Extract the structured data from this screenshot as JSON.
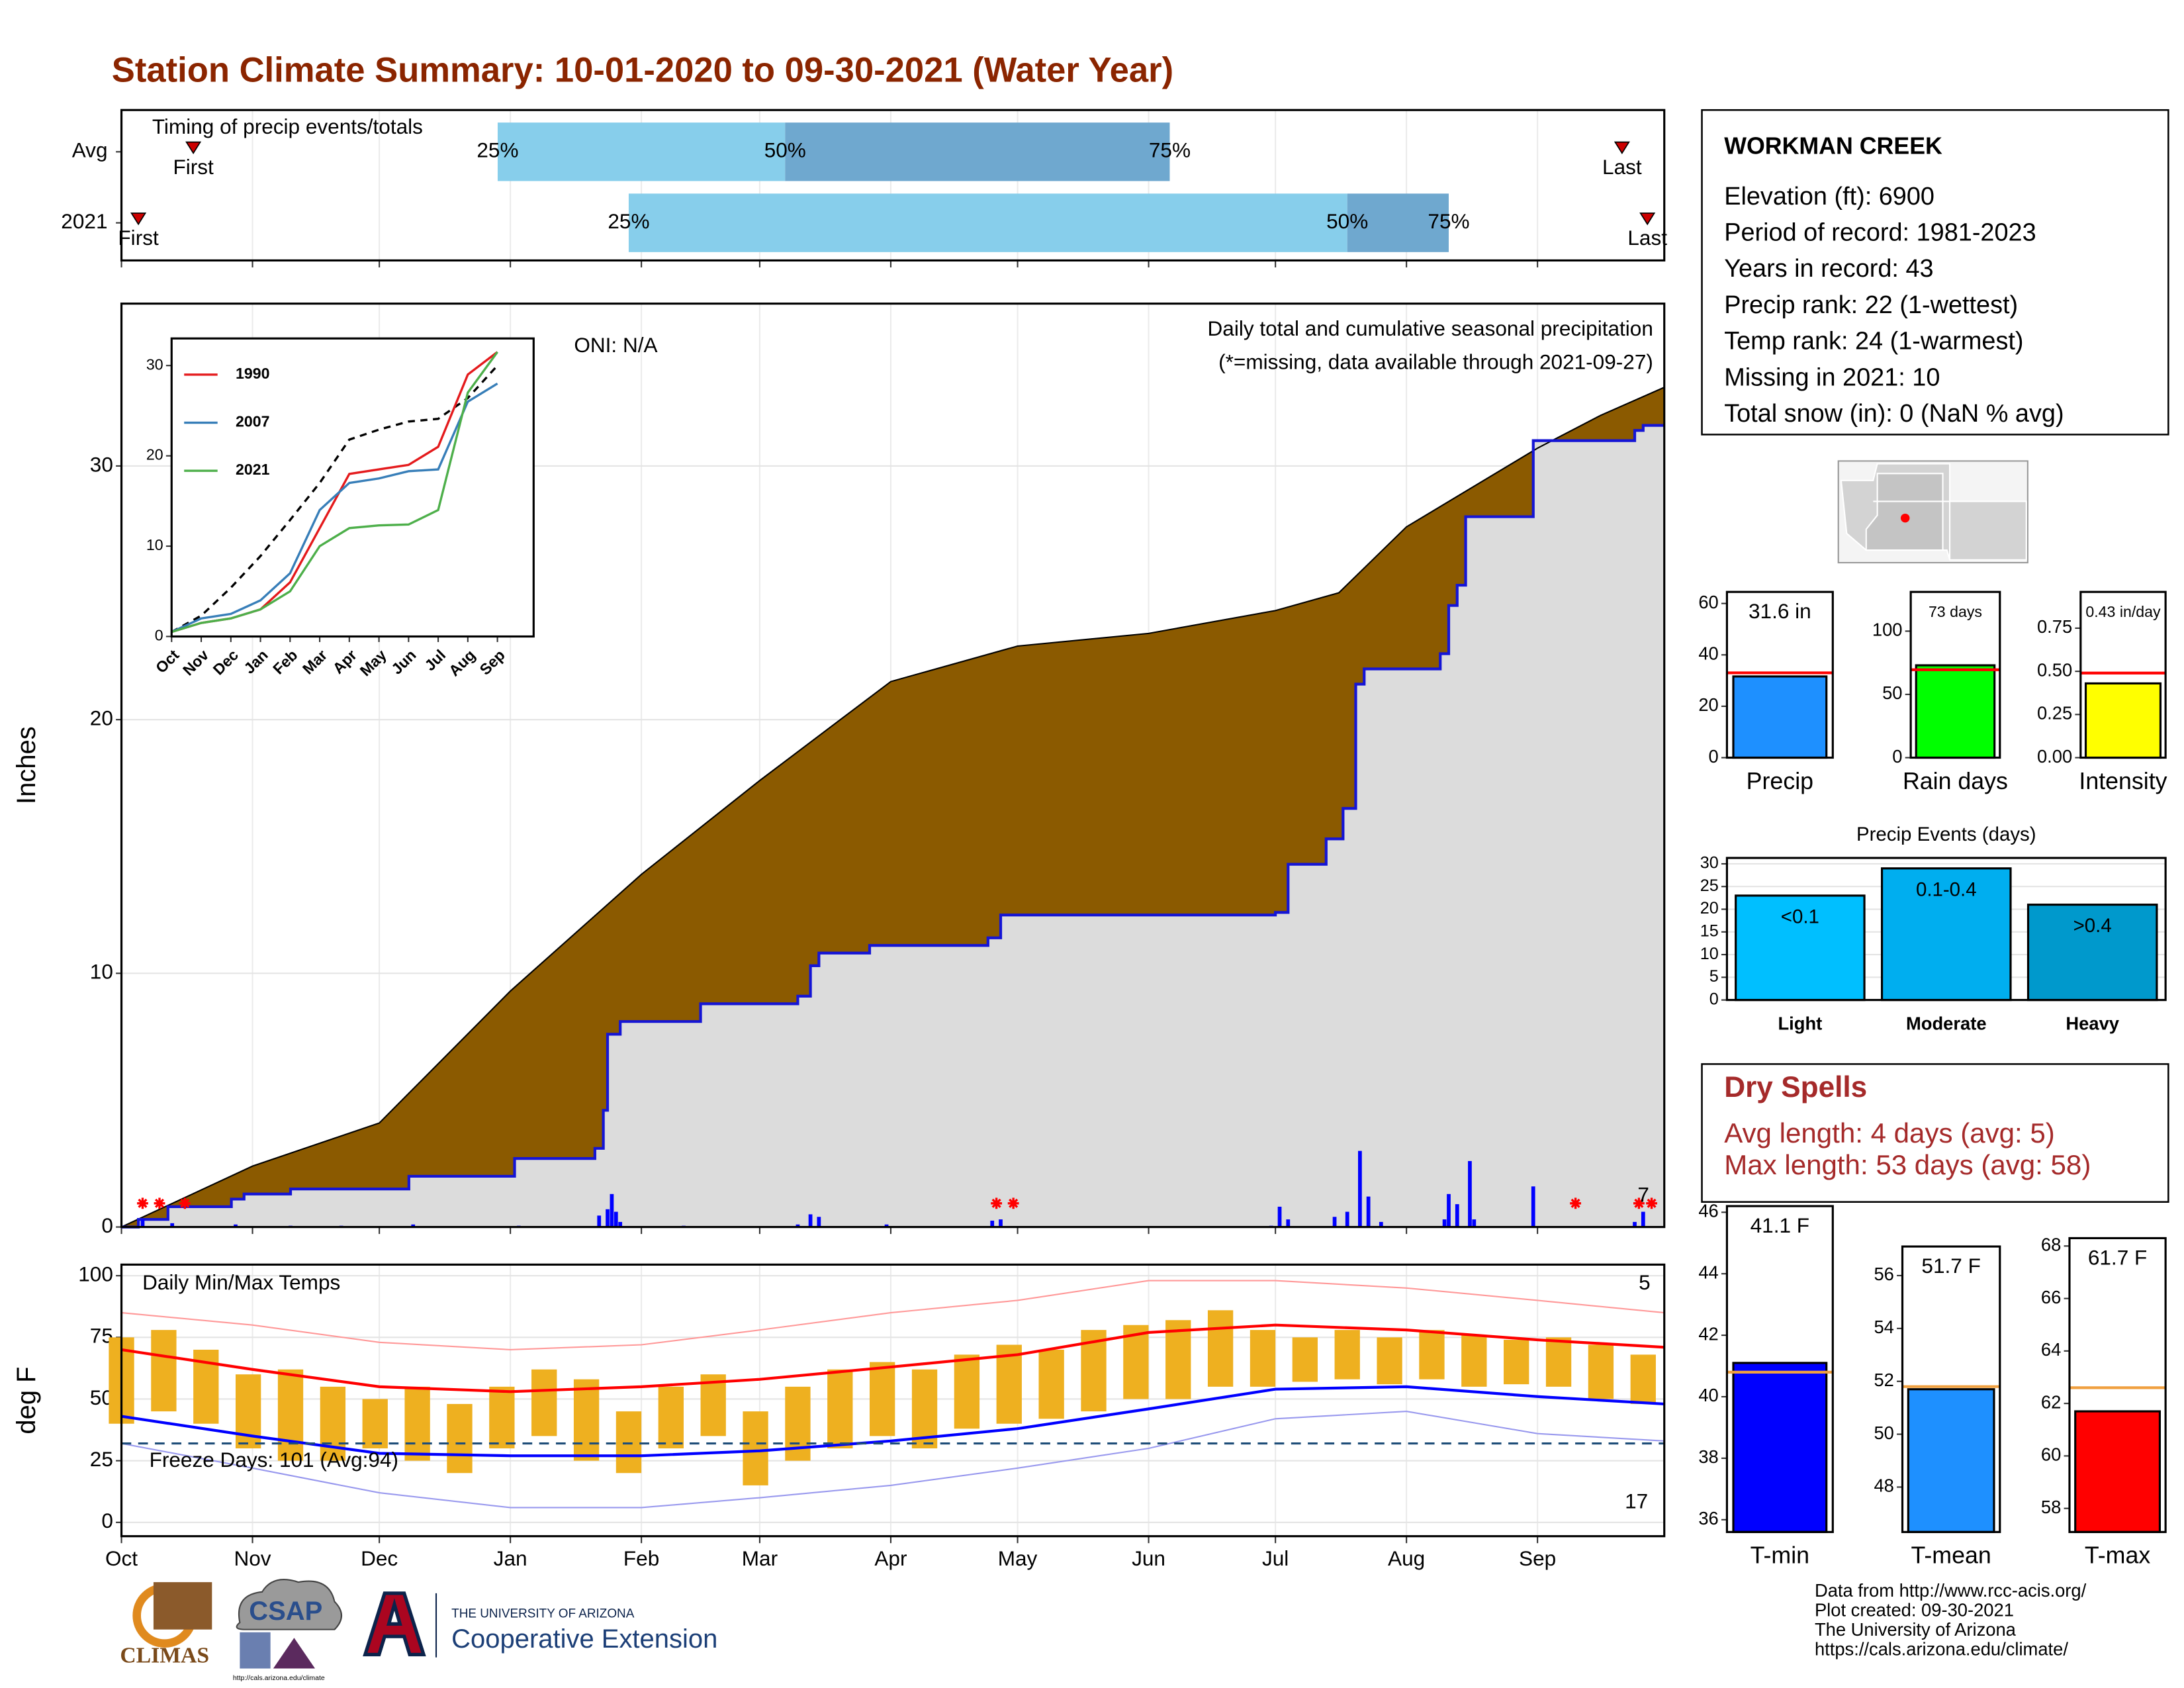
{
  "title": "Station Climate Summary: 10-01-2020 to 09-30-2021 (Water Year)",
  "station": {
    "name": "WORKMAN CREEK",
    "lines": [
      "Elevation (ft): 6900",
      "Period of record: 1981-2023",
      "Years in record: 43",
      "Precip rank: 22 (1-wettest)",
      "Temp rank: 24 (1-warmest)",
      "Missing in 2021: 10",
      "Total snow (in): 0 (NaN % avg)"
    ]
  },
  "dry_spells": {
    "title": "Dry Spells",
    "lines": [
      "Avg length: 4 days (avg: 5)",
      "Max length: 53 days (avg: 58)"
    ]
  },
  "footer": {
    "climas": "CLIMAS",
    "csap": "CSAP",
    "csap_url": "http://cals.arizona.edu/climate",
    "university": "THE UNIVERSITY OF ARIZONA",
    "extension": "Cooperative Extension"
  },
  "credits": [
    "Data from http://www.rcc-acis.org/",
    "Plot created: 09-30-2021",
    "The University of Arizona",
    "https://cals.arizona.edu/climate/"
  ],
  "chart_data": [
    {
      "type": "timeline",
      "label": "Timing of precip events/totals",
      "xlim": [
        0,
        365
      ],
      "quantile_labels": [
        "25%",
        "50%",
        "75%"
      ],
      "marker_labels": [
        "First",
        "Last"
      ],
      "colors": [
        "#87CEEB",
        "#6FA8CF"
      ],
      "marker_color": "#CC0000",
      "rows": [
        {
          "label": "Avg",
          "first": 17,
          "quantiles": [
            89,
            157,
            248
          ],
          "last": 355
        },
        {
          "label": "2021",
          "first": 4,
          "quantiles": [
            120,
            290,
            314
          ],
          "last": 361
        }
      ]
    },
    {
      "type": "area",
      "title": "Daily total and cumulative seasonal precipitation",
      "note": "(*=missing, data available through 2021-09-27)",
      "oni": "ONI: N/A",
      "ylabel": "Inches",
      "record_label": "7",
      "xlim": [
        0,
        365
      ],
      "ylim": [
        0,
        36.4
      ],
      "yticks": [
        0,
        10,
        20,
        30
      ],
      "grid": true,
      "series": [
        {
          "color": "#8B5A00",
          "x": [
            0,
            31,
            61,
            92,
            123,
            151,
            182,
            212,
            243,
            273,
            288,
            304,
            335,
            350,
            365
          ],
          "values": [
            0,
            2.4,
            4.1,
            9.3,
            13.9,
            17.6,
            21.5,
            22.9,
            23.4,
            24.3,
            25,
            27.6,
            30.7,
            32,
            33.1
          ]
        },
        {
          "color": "#1515D5",
          "fill": "#DCDCDC",
          "x": [
            0,
            4,
            4,
            11,
            11,
            26,
            26,
            29,
            29,
            40,
            40,
            68,
            68,
            93,
            93,
            112,
            112,
            114,
            114,
            115,
            115,
            118,
            118,
            137,
            137,
            160,
            160,
            163,
            163,
            165,
            165,
            177,
            177,
            205,
            205,
            208,
            208,
            273,
            273,
            276,
            276,
            285,
            285,
            289,
            289,
            292,
            292,
            294,
            294,
            312,
            312,
            314,
            314,
            316,
            316,
            318,
            318,
            334,
            334,
            358,
            358,
            360,
            360,
            365
          ],
          "values": [
            0,
            0,
            0.3,
            0.3,
            0.8,
            0.8,
            1.1,
            1.1,
            1.3,
            1.3,
            1.5,
            1.5,
            2.0,
            2.0,
            2.7,
            2.7,
            3.1,
            3.1,
            4.6,
            4.6,
            7.6,
            7.6,
            8.1,
            8.1,
            8.8,
            8.8,
            9.1,
            9.1,
            10.3,
            10.3,
            10.8,
            10.8,
            11.1,
            11.1,
            11.4,
            11.4,
            12.3,
            12.3,
            12.4,
            12.4,
            14.3,
            14.3,
            15.3,
            15.3,
            16.5,
            16.5,
            21.4,
            21.4,
            22.0,
            22.0,
            22.6,
            22.6,
            24.5,
            24.5,
            25.3,
            25.3,
            28.0,
            28.0,
            31.0,
            31.0,
            31.4,
            31.4,
            31.6,
            31.6
          ]
        }
      ],
      "daily": {
        "color": "#0000FF",
        "x": [
          5,
          12,
          27,
          40,
          52,
          69,
          94,
          113,
          115,
          116,
          117,
          118,
          133,
          160,
          163,
          165,
          181,
          206,
          208,
          272,
          274,
          276,
          287,
          290,
          293,
          295,
          298,
          313,
          314,
          316,
          319,
          320,
          334,
          358,
          360
        ],
        "values": [
          0.3,
          0.15,
          0.1,
          0.05,
          0.05,
          0.1,
          0.05,
          0.45,
          0.7,
          1.3,
          0.6,
          0.2,
          0.05,
          0.1,
          0.5,
          0.4,
          0.1,
          0.25,
          0.3,
          0.05,
          0.8,
          0.3,
          0.4,
          0.6,
          3.0,
          1.2,
          0.2,
          0.3,
          1.3,
          0.9,
          2.6,
          0.3,
          1.6,
          0.2,
          0.6
        ]
      },
      "missing": {
        "color": "#FF0000",
        "x": [
          5,
          9,
          15,
          207,
          211,
          344,
          359,
          362
        ]
      }
    },
    {
      "type": "line",
      "categories": [
        "Oct",
        "Nov",
        "Dec",
        "Jan",
        "Feb",
        "Mar",
        "Apr",
        "May",
        "Jun",
        "Jul",
        "Aug",
        "Sep"
      ],
      "ylim": [
        0,
        33
      ],
      "yticks": [
        0,
        10,
        20,
        30
      ],
      "series": [
        {
          "color": "#000000",
          "dash": true,
          "values": [
            0.5,
            2.3,
            5.4,
            8.9,
            12.9,
            17,
            21.8,
            22.9,
            23.8,
            24.1,
            26.4,
            30
          ]
        },
        {
          "name": "1990",
          "color": "#E41A1C",
          "values": [
            0.5,
            1.5,
            2,
            3,
            6,
            12,
            18,
            18.5,
            19,
            21,
            29,
            31.5
          ]
        },
        {
          "name": "2007",
          "color": "#377EB8",
          "values": [
            0.5,
            2,
            2.5,
            4,
            7,
            14,
            17,
            17.5,
            18.3,
            18.5,
            26,
            28
          ]
        },
        {
          "name": "2021",
          "color": "#4DAF4A",
          "values": [
            0.5,
            1.5,
            2,
            3,
            5,
            10,
            12,
            12.3,
            12.4,
            14,
            27,
            31.5
          ]
        }
      ]
    },
    {
      "type": "range",
      "title": "Daily Min/Max Temps",
      "ylabel": "deg F",
      "freeze_label": "Freeze Days: 101 (Avg:94)",
      "record_high_days": 5,
      "record_low_days": 17,
      "freeze_line": 32,
      "xlim": [
        0,
        365
      ],
      "ylim": [
        -5.6,
        104.5
      ],
      "yticks": [
        0,
        25,
        50,
        75,
        100
      ],
      "grid": true,
      "xticks": [
        {
          "value": 0,
          "label": "Oct"
        },
        {
          "value": 31,
          "label": "Nov"
        },
        {
          "value": 61,
          "label": "Dec"
        },
        {
          "value": 92,
          "label": "Jan"
        },
        {
          "value": 123,
          "label": "Feb"
        },
        {
          "value": 151,
          "label": "Mar"
        },
        {
          "value": 182,
          "label": "Apr"
        },
        {
          "value": 212,
          "label": "May"
        },
        {
          "value": 243,
          "label": "Jun"
        },
        {
          "value": 273,
          "label": "Jul"
        },
        {
          "value": 304,
          "label": "Aug"
        },
        {
          "value": 335,
          "label": "Sep"
        }
      ],
      "bars": {
        "color": "#EEB020",
        "x": [
          0,
          10,
          20,
          30,
          40,
          50,
          60,
          70,
          80,
          90,
          100,
          110,
          120,
          130,
          140,
          150,
          160,
          170,
          180,
          190,
          200,
          210,
          220,
          230,
          240,
          250,
          260,
          270,
          280,
          290,
          300,
          310,
          320,
          330,
          340,
          350,
          360
        ],
        "high": [
          75,
          78,
          70,
          60,
          62,
          55,
          50,
          55,
          48,
          55,
          62,
          58,
          45,
          55,
          60,
          45,
          55,
          62,
          65,
          62,
          68,
          72,
          70,
          78,
          80,
          82,
          86,
          78,
          75,
          78,
          75,
          78,
          76,
          74,
          75,
          72,
          68
        ],
        "low": [
          40,
          45,
          40,
          30,
          25,
          25,
          30,
          25,
          20,
          30,
          35,
          25,
          20,
          30,
          35,
          15,
          25,
          30,
          35,
          30,
          38,
          40,
          42,
          45,
          50,
          50,
          55,
          55,
          57,
          58,
          56,
          58,
          55,
          56,
          55,
          50,
          48
        ]
      },
      "lines": [
        {
          "color": "#FF9999",
          "width": 1,
          "x": [
            0,
            31,
            61,
            92,
            123,
            151,
            182,
            212,
            243,
            273,
            304,
            335,
            365
          ],
          "values": [
            85,
            80,
            73,
            70,
            72,
            78,
            85,
            90,
            98,
            98,
            95,
            90,
            85
          ]
        },
        {
          "color": "#9999EE",
          "width": 1,
          "x": [
            0,
            31,
            61,
            92,
            123,
            151,
            182,
            212,
            243,
            273,
            304,
            335,
            365
          ],
          "values": [
            32,
            22,
            12,
            6,
            6,
            10,
            15,
            22,
            30,
            42,
            45,
            36,
            33
          ]
        },
        {
          "color": "#FF0000",
          "width": 2,
          "x": [
            0,
            31,
            61,
            92,
            123,
            151,
            182,
            212,
            243,
            273,
            304,
            335,
            365
          ],
          "values": [
            70,
            62,
            55,
            53,
            55,
            58,
            63,
            68,
            77,
            80,
            78,
            74,
            71
          ]
        },
        {
          "color": "#0000FF",
          "width": 2,
          "x": [
            0,
            31,
            61,
            92,
            123,
            151,
            182,
            212,
            243,
            273,
            304,
            335,
            365
          ],
          "values": [
            43,
            35,
            28,
            27,
            27,
            29,
            33,
            38,
            46,
            54,
            55,
            51,
            48
          ]
        }
      ]
    },
    {
      "type": "bar",
      "categories": [
        "Precip"
      ],
      "values": [
        31.6
      ],
      "value_labels": [
        "31.6 in"
      ],
      "colors": [
        "#1E90FF"
      ],
      "average": 33,
      "average_color": "#FF0000",
      "ylim": [
        0,
        64.5
      ],
      "yticks": [
        0,
        20,
        40,
        60
      ]
    },
    {
      "type": "bar",
      "categories": [
        "Rain days"
      ],
      "values": [
        73
      ],
      "value_labels": [
        "73 days"
      ],
      "colors": [
        "#00FF00"
      ],
      "average": 69.5,
      "average_color": "#FF0000",
      "ylim": [
        0,
        131
      ],
      "yticks": [
        0,
        50,
        100
      ]
    },
    {
      "type": "bar",
      "categories": [
        "Intensity"
      ],
      "values": [
        0.43
      ],
      "value_labels": [
        "0.43 in/day"
      ],
      "colors": [
        "#FFFF00"
      ],
      "average": 0.49,
      "average_color": "#FF0000",
      "ylim": [
        0,
        0.96
      ],
      "yticks": [
        {
          "value": 0,
          "label": "0.00"
        },
        {
          "value": 0.25,
          "label": "0.25"
        },
        {
          "value": 0.5,
          "label": "0.50"
        },
        {
          "value": 0.75,
          "label": "0.75"
        }
      ]
    },
    {
      "type": "bar",
      "title": "Precip Events (days)",
      "categories": [
        "Light",
        "Moderate",
        "Heavy"
      ],
      "bin_labels": [
        "<0.1",
        "0.1-0.4",
        ">0.4"
      ],
      "values": [
        23,
        29,
        21
      ],
      "colors": [
        "#00BFFF",
        "#00AEEF",
        "#0099CC"
      ],
      "ylim": [
        0,
        31.3
      ],
      "yticks": [
        0,
        5,
        10,
        15,
        20,
        25,
        30
      ],
      "grid": true
    },
    {
      "type": "bar",
      "categories": [
        "T-min"
      ],
      "values": [
        41.1
      ],
      "value_labels": [
        "41.1 F"
      ],
      "colors": [
        "#0000FF"
      ],
      "average": 40.8,
      "average_color": "#F0A040",
      "ylim": [
        35.6,
        46.2
      ],
      "yticks": [
        36,
        38,
        40,
        42,
        44,
        46
      ]
    },
    {
      "type": "bar",
      "categories": [
        "T-mean"
      ],
      "values": [
        51.7
      ],
      "value_labels": [
        "51.7 F"
      ],
      "colors": [
        "#1E90FF"
      ],
      "average": 51.8,
      "average_color": "#F0A040",
      "ylim": [
        46.3,
        57.1
      ],
      "yticks": [
        48,
        50,
        52,
        54,
        56
      ]
    },
    {
      "type": "bar",
      "categories": [
        "T-max"
      ],
      "values": [
        61.7
      ],
      "value_labels": [
        "61.7 F"
      ],
      "colors": [
        "#FF0000"
      ],
      "average": 62.6,
      "average_color": "#F0A040",
      "ylim": [
        57.1,
        68.3
      ],
      "yticks": [
        58,
        60,
        62,
        64,
        66,
        68
      ]
    }
  ]
}
